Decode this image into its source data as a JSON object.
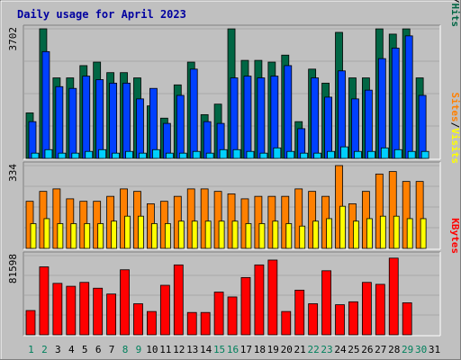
{
  "chart_data": {
    "type": "bar",
    "title": "Daily usage for April 2023",
    "colors": {
      "background": "#c0c0c0",
      "title": "#0000a0",
      "hits": "#006644",
      "files": "#0040ff",
      "pages": "#00d0ff",
      "visits": "#ff8000",
      "sites": "#ffff00",
      "kbytes": "#ff0000",
      "weekend_label": "#00805c",
      "weekday_label": "#000000"
    },
    "days": [
      "1",
      "2",
      "3",
      "4",
      "5",
      "6",
      "7",
      "8",
      "9",
      "10",
      "11",
      "12",
      "13",
      "14",
      "15",
      "16",
      "17",
      "18",
      "19",
      "20",
      "21",
      "22",
      "23",
      "24",
      "25",
      "26",
      "27",
      "28",
      "29",
      "30",
      "31"
    ],
    "weekend_days": [
      "1",
      "2",
      "8",
      "9",
      "15",
      "16",
      "22",
      "23",
      "29",
      "30"
    ],
    "panels": [
      {
        "id": "hits-files-pages",
        "max_label": "3702",
        "ylim": [
          0,
          3702
        ],
        "legend": [
          {
            "text": "Pages",
            "color": "#00d0ff"
          },
          {
            "text": "/",
            "color": "#000000"
          },
          {
            "text": "Files",
            "color": "#0040ff"
          },
          {
            "text": "/",
            "color": "#000000"
          },
          {
            "text": "Hits",
            "color": "#006644"
          }
        ],
        "series": [
          {
            "name": "Hits",
            "color": "#006644",
            "values": [
              1300,
              3702,
              2300,
              2300,
              2650,
              2750,
              2450,
              2450,
              2300,
              1500,
              1150,
              2100,
              2750,
              1250,
              1550,
              3700,
              2800,
              2800,
              2750,
              2950,
              1050,
              2550,
              2150,
              3600,
              2300,
              2300,
              3700,
              3550,
              3700,
              2300,
              0
            ]
          },
          {
            "name": "Files",
            "color": "#0040ff",
            "values": [
              1050,
              3050,
              2050,
              2000,
              2350,
              2250,
              2150,
              2150,
              1700,
              2000,
              1000,
              1800,
              2550,
              1050,
              1000,
              2300,
              2350,
              2300,
              2350,
              2650,
              850,
              2300,
              1750,
              2500,
              1700,
              1950,
              2850,
              3150,
              3500,
              1800,
              0
            ]
          },
          {
            "name": "Pages",
            "color": "#00d0ff",
            "values": [
              150,
              250,
              150,
              150,
              200,
              250,
              150,
              200,
              150,
              250,
              150,
              150,
              200,
              150,
              250,
              250,
              200,
              150,
              300,
              200,
              150,
              150,
              200,
              330,
              200,
              200,
              300,
              250,
              200,
              200,
              0
            ]
          }
        ]
      },
      {
        "id": "visits-sites",
        "max_label": "334",
        "ylim": [
          0,
          334
        ],
        "legend": [
          {
            "text": "Sites",
            "color": "#ff8000"
          },
          {
            "text": "/",
            "color": "#000000"
          },
          {
            "text": "Visits",
            "color": "#ffff00"
          }
        ],
        "series": [
          {
            "name": "Visits",
            "color": "#ff8000",
            "values": [
              190,
              230,
              240,
              200,
              190,
              190,
              210,
              240,
              230,
              180,
              190,
              210,
              240,
              240,
              230,
              220,
              200,
              210,
              210,
              210,
              240,
              230,
              210,
              334,
              180,
              230,
              300,
              310,
              270,
              270,
              0
            ]
          },
          {
            "name": "Sites",
            "color": "#ffff00",
            "values": [
              100,
              120,
              100,
              100,
              100,
              100,
              110,
              130,
              130,
              100,
              100,
              110,
              110,
              110,
              110,
              110,
              100,
              100,
              110,
              100,
              90,
              110,
              120,
              170,
              110,
              120,
              130,
              130,
              120,
              120,
              0
            ]
          }
        ]
      },
      {
        "id": "kbytes",
        "max_label": "81598",
        "ylim": [
          0,
          81598
        ],
        "legend": [
          {
            "text": "KBytes",
            "color": "#ff0000"
          }
        ],
        "series": [
          {
            "name": "KBytes",
            "color": "#ff0000",
            "values": [
              25000,
              70000,
              53000,
              50000,
              54000,
              48000,
              42000,
              67000,
              32000,
              24000,
              51000,
              72000,
              23000,
              23000,
              44000,
              39000,
              59000,
              72000,
              77000,
              24000,
              46000,
              32000,
              66000,
              31000,
              34000,
              54000,
              52000,
              79000,
              33000,
              0,
              0
            ]
          }
        ]
      }
    ]
  }
}
